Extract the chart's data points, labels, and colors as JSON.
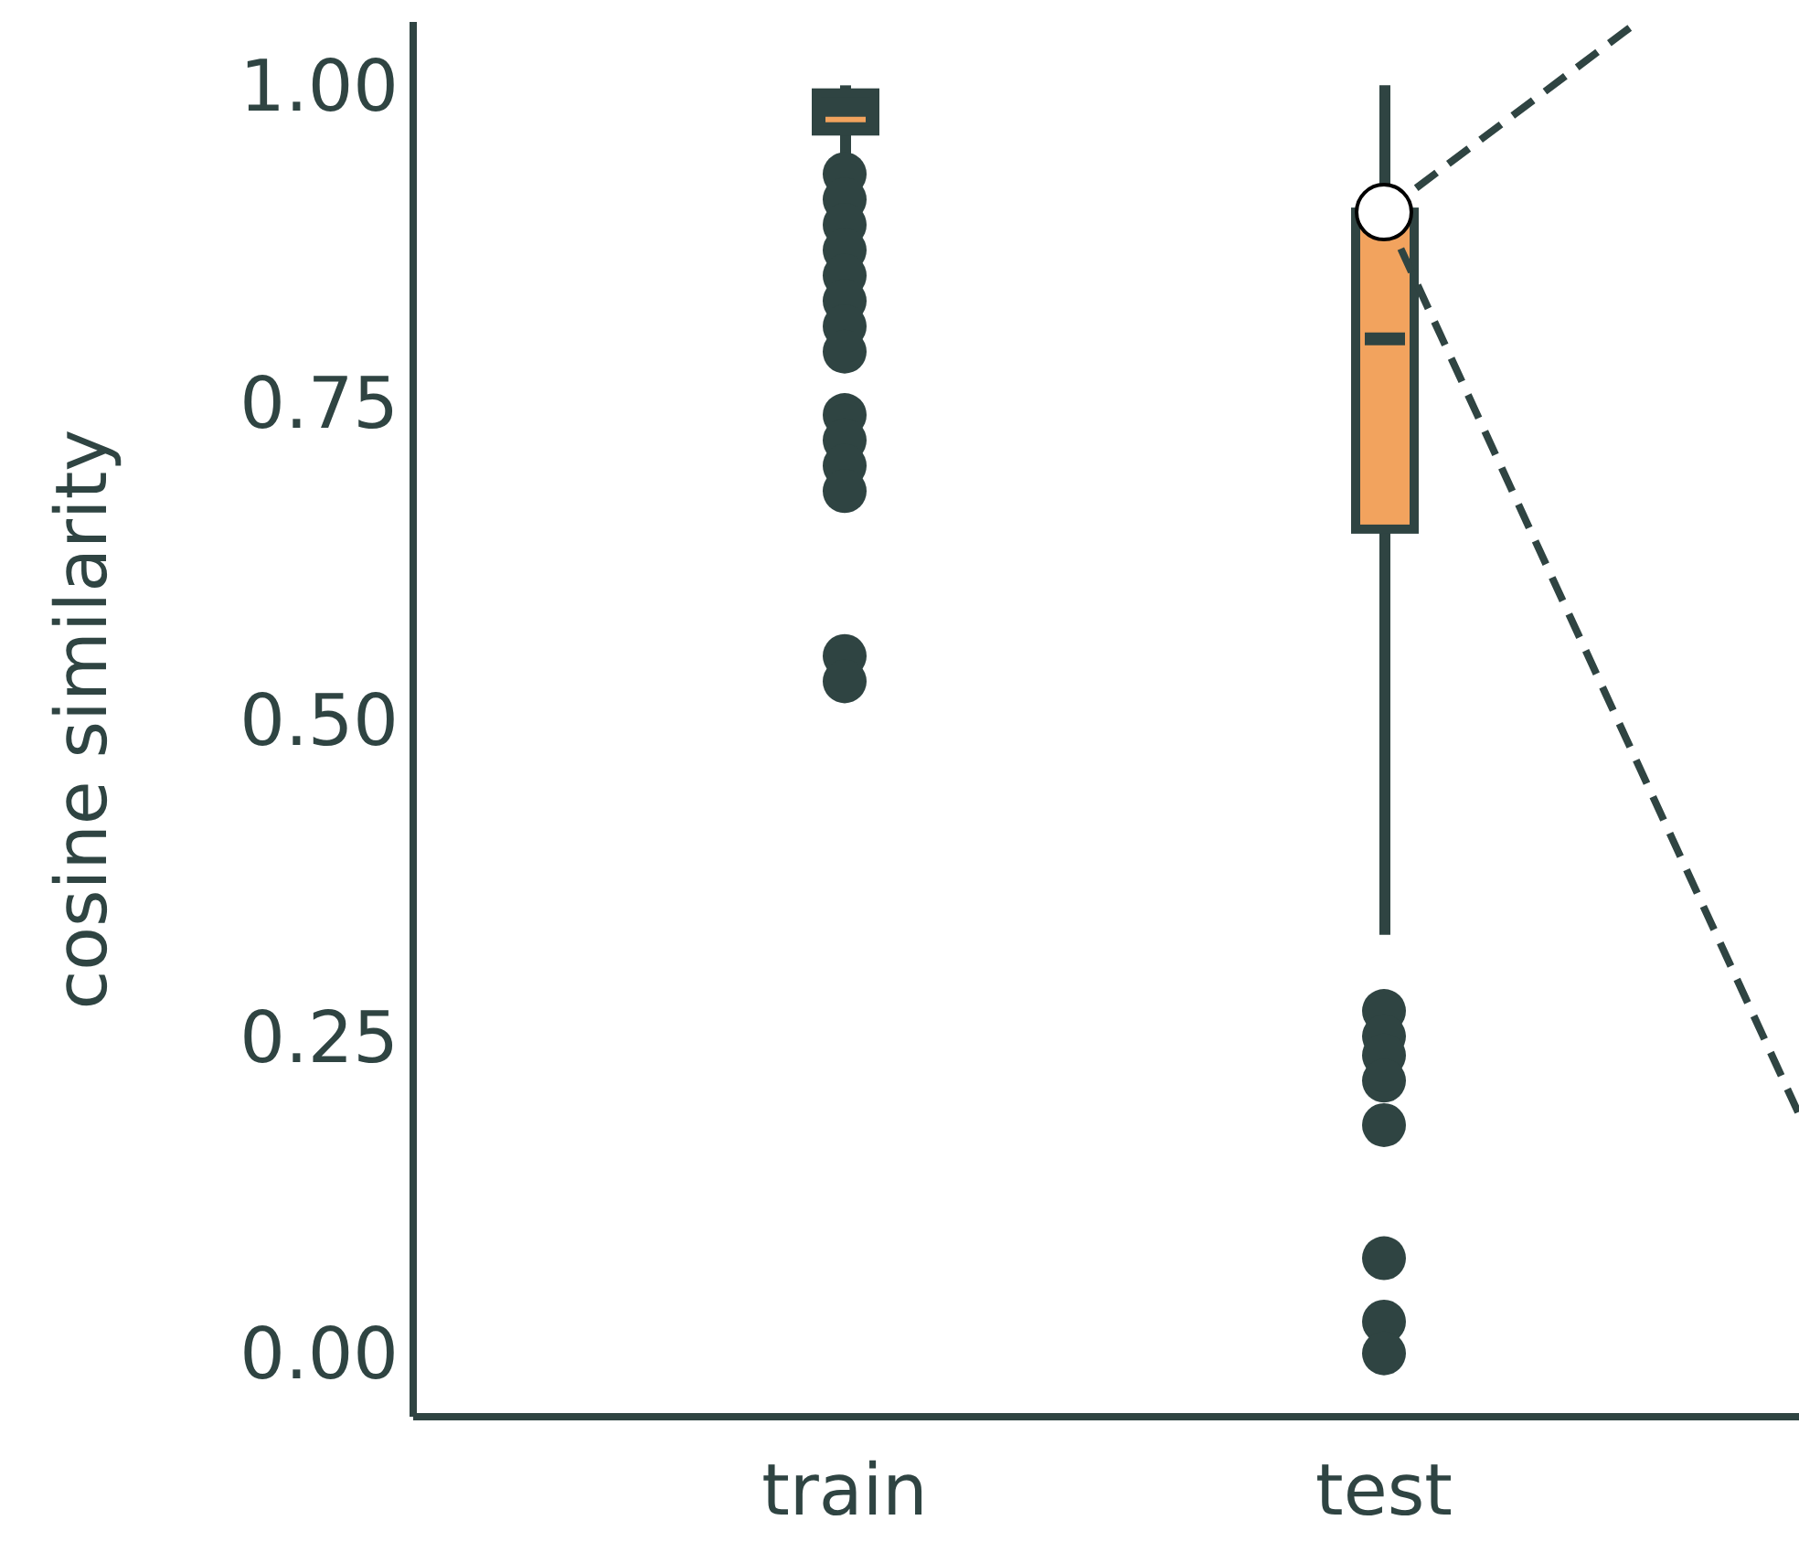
{
  "chart_data": {
    "type": "box",
    "ylabel": "cosine similarity",
    "categories": [
      "train",
      "test"
    ],
    "colors": [
      "#2f4442",
      "#f2a35e"
    ],
    "boxes": [
      {
        "low": 0.944,
        "q1": 0.964,
        "median": 0.973,
        "q3": 0.994,
        "high": 1.0,
        "outliers": [
          0.93,
          0.91,
          0.89,
          0.87,
          0.85,
          0.83,
          0.81,
          0.79,
          0.74,
          0.72,
          0.7,
          0.68,
          0.55,
          0.53
        ]
      },
      {
        "low": 0.33,
        "q1": 0.65,
        "median": 0.8,
        "q3": 0.9,
        "high": 1.0,
        "outliers": [
          0.27,
          0.25,
          0.235,
          0.215,
          0.18,
          0.075,
          0.025,
          0.0
        ]
      }
    ],
    "series": [
      {
        "type": "scatter",
        "x": [
          "test"
        ],
        "values": [
          0.9
        ],
        "color": "#ffffff"
      }
    ],
    "ylim": [
      -0.05,
      1.05
    ],
    "yticks": [
      {
        "value": 0,
        "label": "0.00"
      },
      {
        "value": 0.25,
        "label": "0.25"
      },
      {
        "value": 0.5,
        "label": "0.50"
      },
      {
        "value": 0.75,
        "label": "0.75"
      },
      {
        "value": 1,
        "label": "1.00"
      }
    ],
    "grid": false,
    "legend": false
  }
}
